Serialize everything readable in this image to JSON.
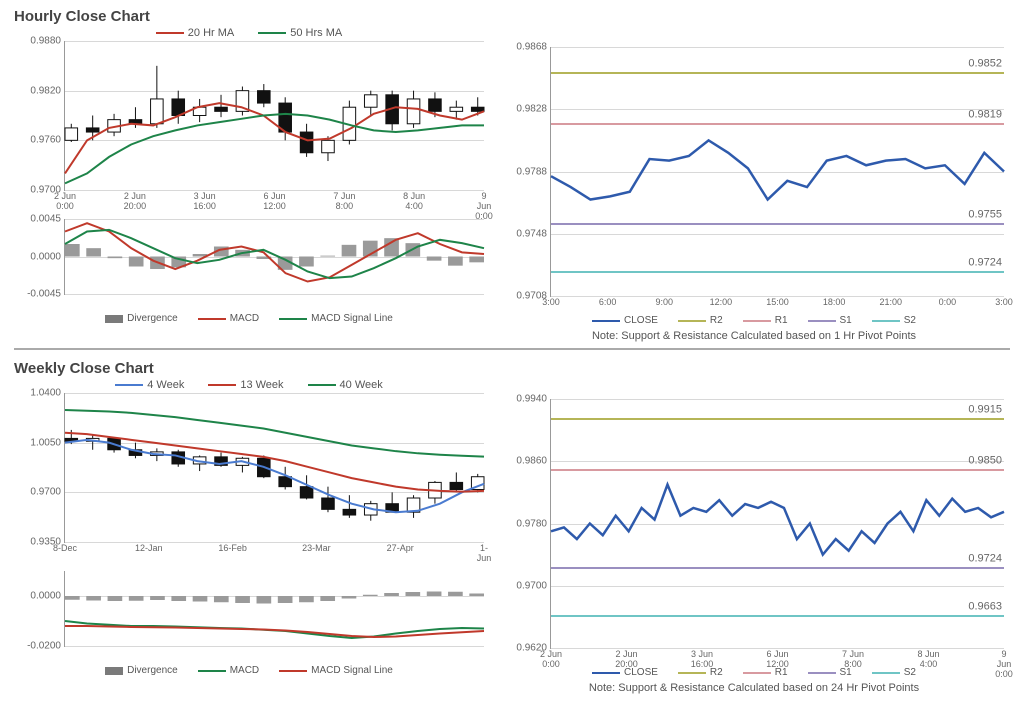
{
  "hourly": {
    "title": "Hourly Close Chart",
    "main": {
      "ylim": [
        0.97,
        0.988
      ],
      "yticks": [
        0.97,
        0.976,
        0.982,
        0.988
      ],
      "xlabels": [
        "2 Jun\n0:00",
        "2 Jun\n20:00",
        "3 Jun\n16:00",
        "6 Jun\n12:00",
        "7 Jun\n8:00",
        "8 Jun\n4:00",
        "9 Jun\n0:00"
      ],
      "ma20": [
        0.972,
        0.976,
        0.9775,
        0.978,
        0.9778,
        0.9788,
        0.98,
        0.9805,
        0.98,
        0.979,
        0.977,
        0.976,
        0.9762,
        0.9775,
        0.9792,
        0.98,
        0.9798,
        0.979,
        0.9785,
        0.9795
      ],
      "ma50": [
        0.9708,
        0.972,
        0.974,
        0.9755,
        0.9765,
        0.9772,
        0.9778,
        0.9782,
        0.9786,
        0.979,
        0.9792,
        0.979,
        0.9785,
        0.9778,
        0.9772,
        0.977,
        0.9772,
        0.9775,
        0.9778,
        0.9778
      ],
      "candles": [
        [
          0.976,
          0.978,
          0.9758,
          0.9775
        ],
        [
          0.9775,
          0.979,
          0.976,
          0.977
        ],
        [
          0.977,
          0.9792,
          0.9765,
          0.9785
        ],
        [
          0.9785,
          0.98,
          0.9775,
          0.978
        ],
        [
          0.978,
          0.985,
          0.9775,
          0.981
        ],
        [
          0.981,
          0.982,
          0.978,
          0.979
        ],
        [
          0.979,
          0.981,
          0.9782,
          0.98
        ],
        [
          0.98,
          0.9815,
          0.9788,
          0.9795
        ],
        [
          0.9795,
          0.9825,
          0.979,
          0.982
        ],
        [
          0.982,
          0.9828,
          0.98,
          0.9805
        ],
        [
          0.9805,
          0.9812,
          0.976,
          0.977
        ],
        [
          0.977,
          0.978,
          0.974,
          0.9745
        ],
        [
          0.9745,
          0.9765,
          0.9735,
          0.976
        ],
        [
          0.976,
          0.9808,
          0.9755,
          0.98
        ],
        [
          0.98,
          0.982,
          0.979,
          0.9815
        ],
        [
          0.9815,
          0.982,
          0.9772,
          0.978
        ],
        [
          0.978,
          0.982,
          0.9775,
          0.981
        ],
        [
          0.981,
          0.9818,
          0.9788,
          0.9795
        ],
        [
          0.9795,
          0.9808,
          0.9785,
          0.98
        ],
        [
          0.98,
          0.9812,
          0.979,
          0.9795
        ]
      ],
      "legend": [
        {
          "label": "20 Hr MA",
          "color": "#c0392b"
        },
        {
          "label": "50 Hrs MA",
          "color": "#1e8449"
        }
      ],
      "colors": {
        "ma20": "#c0392b",
        "ma50": "#1e8449",
        "candle": "#111111"
      }
    },
    "macd": {
      "ylim": [
        -0.0045,
        0.0045
      ],
      "yticks": [
        -0.0045,
        0.0,
        0.0045
      ],
      "macd": [
        0.003,
        0.004,
        0.003,
        0.001,
        -0.0005,
        -0.0015,
        -0.0005,
        0.0008,
        0.0012,
        0.0005,
        -0.002,
        -0.003,
        -0.0025,
        -0.001,
        0.0005,
        0.002,
        0.0028,
        0.0015,
        0.0005,
        0.0003
      ],
      "signal": [
        0.0015,
        0.003,
        0.0032,
        0.0022,
        0.001,
        -0.0002,
        -0.0008,
        -0.0004,
        0.0004,
        0.0008,
        -0.0004,
        -0.0018,
        -0.0026,
        -0.0024,
        -0.0014,
        -0.0002,
        0.0012,
        0.002,
        0.0016,
        0.001
      ],
      "hist": [
        0.0015,
        0.001,
        -0.0002,
        -0.0012,
        -0.0015,
        -0.0013,
        0.0003,
        0.0012,
        0.0008,
        -0.0003,
        -0.0016,
        -0.0012,
        0.0001,
        0.0014,
        0.0019,
        0.0022,
        0.0016,
        -0.0005,
        -0.0011,
        -0.0007
      ],
      "legend": [
        {
          "label": "Divergence",
          "type": "bar",
          "color": "#7a7a7a"
        },
        {
          "label": "MACD",
          "type": "line",
          "color": "#c0392b"
        },
        {
          "label": "MACD Signal Line",
          "type": "line",
          "color": "#1e8449"
        }
      ]
    },
    "sr": {
      "ylim": [
        0.9708,
        0.9868
      ],
      "yticks": [
        0.9708,
        0.9748,
        0.9788,
        0.9828,
        0.9868
      ],
      "xlabels": [
        "3:00",
        "6:00",
        "9:00",
        "12:00",
        "15:00",
        "18:00",
        "21:00",
        "0:00",
        "3:00"
      ],
      "close": [
        0.9785,
        0.9778,
        0.977,
        0.9772,
        0.9775,
        0.9796,
        0.9795,
        0.9798,
        0.9808,
        0.98,
        0.979,
        0.977,
        0.9782,
        0.9778,
        0.9795,
        0.9798,
        0.9792,
        0.9795,
        0.9796,
        0.979,
        0.9792,
        0.978,
        0.98,
        0.9788
      ],
      "close_color": "#2e5aac",
      "levels": [
        {
          "name": "R2",
          "value": 0.9852,
          "color": "#b5b557"
        },
        {
          "name": "R1",
          "value": 0.9819,
          "color": "#d89aa0"
        },
        {
          "name": "S1",
          "value": 0.9755,
          "color": "#9a8fc0"
        },
        {
          "name": "S2",
          "value": 0.9724,
          "color": "#6fc5c5"
        }
      ],
      "legend": [
        {
          "label": "CLOSE",
          "color": "#2e5aac"
        },
        {
          "label": "R2",
          "color": "#b5b557"
        },
        {
          "label": "R1",
          "color": "#d89aa0"
        },
        {
          "label": "S1",
          "color": "#9a8fc0"
        },
        {
          "label": "S2",
          "color": "#6fc5c5"
        }
      ],
      "note": "Note: Support & Resistance Calculated based on 1 Hr Pivot Points"
    }
  },
  "weekly": {
    "title": "Weekly Close Chart",
    "main": {
      "ylim": [
        0.935,
        1.04
      ],
      "yticks": [
        0.935,
        0.97,
        1.005,
        1.04
      ],
      "xlabels": [
        "8-Dec",
        "12-Jan",
        "16-Feb",
        "23-Mar",
        "27-Apr",
        "1-Jun"
      ],
      "w4": [
        1.005,
        1.007,
        1.005,
        1.0,
        0.997,
        0.996,
        0.992,
        0.99,
        0.992,
        0.988,
        0.982,
        0.975,
        0.968,
        0.962,
        0.958,
        0.956,
        0.957,
        0.962,
        0.97,
        0.976
      ],
      "w13": [
        1.012,
        1.011,
        1.009,
        1.007,
        1.005,
        1.003,
        1.001,
        0.999,
        0.997,
        0.995,
        0.992,
        0.988,
        0.984,
        0.98,
        0.977,
        0.974,
        0.972,
        0.971,
        0.9705,
        0.971
      ],
      "w40": [
        1.028,
        1.0275,
        1.027,
        1.026,
        1.0245,
        1.023,
        1.021,
        1.019,
        1.017,
        1.015,
        1.012,
        1.009,
        1.006,
        1.003,
        1.001,
        0.999,
        0.9975,
        0.9965,
        0.9958,
        0.9952
      ],
      "candles": [
        [
          1.008,
          1.014,
          1.004,
          1.006
        ],
        [
          1.006,
          1.01,
          1.0,
          1.008
        ],
        [
          1.008,
          1.009,
          0.998,
          1.0
        ],
        [
          1.0,
          1.005,
          0.994,
          0.996
        ],
        [
          0.996,
          1.001,
          0.992,
          0.9985
        ],
        [
          0.9985,
          1.0,
          0.988,
          0.99
        ],
        [
          0.99,
          0.996,
          0.985,
          0.995
        ],
        [
          0.995,
          0.998,
          0.988,
          0.989
        ],
        [
          0.989,
          0.995,
          0.984,
          0.994
        ],
        [
          0.994,
          0.996,
          0.98,
          0.981
        ],
        [
          0.981,
          0.988,
          0.972,
          0.974
        ],
        [
          0.974,
          0.982,
          0.965,
          0.966
        ],
        [
          0.966,
          0.974,
          0.956,
          0.958
        ],
        [
          0.958,
          0.968,
          0.952,
          0.954
        ],
        [
          0.954,
          0.964,
          0.95,
          0.962
        ],
        [
          0.962,
          0.97,
          0.956,
          0.956
        ],
        [
          0.956,
          0.968,
          0.952,
          0.966
        ],
        [
          0.966,
          0.978,
          0.962,
          0.977
        ],
        [
          0.977,
          0.984,
          0.97,
          0.972
        ],
        [
          0.972,
          0.983,
          0.97,
          0.981
        ]
      ],
      "legend": [
        {
          "label": "4 Week",
          "color": "#4a7bd0"
        },
        {
          "label": "13 Week",
          "color": "#c0392b"
        },
        {
          "label": "40 Week",
          "color": "#1e8449"
        }
      ],
      "colors": {
        "w4": "#4a7bd0",
        "w13": "#c0392b",
        "w40": "#1e8449",
        "candle": "#111111"
      }
    },
    "macd": {
      "ylim": [
        -0.02,
        0.01
      ],
      "yticks": [
        -0.02,
        0.0
      ],
      "macd": [
        -0.01,
        -0.011,
        -0.0115,
        -0.012,
        -0.012,
        -0.0122,
        -0.0125,
        -0.0128,
        -0.013,
        -0.0135,
        -0.014,
        -0.015,
        -0.016,
        -0.0168,
        -0.0162,
        -0.015,
        -0.014,
        -0.0132,
        -0.0128,
        -0.013
      ],
      "signal": [
        -0.012,
        -0.012,
        -0.0122,
        -0.0124,
        -0.0125,
        -0.0126,
        -0.0128,
        -0.013,
        -0.0132,
        -0.0134,
        -0.0138,
        -0.0144,
        -0.0152,
        -0.016,
        -0.0164,
        -0.0162,
        -0.0156,
        -0.015,
        -0.0145,
        -0.014
      ],
      "hist": [
        -0.0015,
        -0.0018,
        -0.002,
        -0.0019,
        -0.0016,
        -0.002,
        -0.0022,
        -0.0025,
        -0.0028,
        -0.003,
        -0.0028,
        -0.0025,
        -0.002,
        -0.001,
        0.0005,
        0.0012,
        0.0016,
        0.0018,
        0.0017,
        0.001
      ],
      "legend": [
        {
          "label": "Divergence",
          "type": "bar",
          "color": "#7a7a7a"
        },
        {
          "label": "MACD",
          "type": "line",
          "color": "#1e8449"
        },
        {
          "label": "MACD Signal Line",
          "type": "line",
          "color": "#c0392b"
        }
      ]
    },
    "sr": {
      "ylim": [
        0.962,
        0.994
      ],
      "yticks": [
        0.962,
        0.97,
        0.978,
        0.986,
        0.994
      ],
      "xlabels": [
        "2 Jun\n0:00",
        "2 Jun\n20:00",
        "3 Jun\n16:00",
        "6 Jun\n12:00",
        "7 Jun\n8:00",
        "8 Jun\n4:00",
        "9 Jun\n0:00"
      ],
      "close": [
        0.977,
        0.9775,
        0.976,
        0.978,
        0.9765,
        0.979,
        0.977,
        0.98,
        0.9785,
        0.983,
        0.979,
        0.98,
        0.9795,
        0.981,
        0.979,
        0.9805,
        0.98,
        0.9808,
        0.98,
        0.976,
        0.978,
        0.974,
        0.976,
        0.9745,
        0.977,
        0.9755,
        0.978,
        0.9795,
        0.977,
        0.981,
        0.979,
        0.9812,
        0.9795,
        0.98,
        0.9788,
        0.9795
      ],
      "close_color": "#2e5aac",
      "levels": [
        {
          "name": "R2",
          "value": 0.9915,
          "color": "#b5b557"
        },
        {
          "name": "R1",
          "value": 0.985,
          "color": "#d89aa0"
        },
        {
          "name": "S1",
          "value": 0.9724,
          "color": "#9a8fc0"
        },
        {
          "name": "S2",
          "value": 0.9663,
          "color": "#6fc5c5"
        }
      ],
      "legend": [
        {
          "label": "CLOSE",
          "color": "#2e5aac"
        },
        {
          "label": "R2",
          "color": "#b5b557"
        },
        {
          "label": "R1",
          "color": "#d89aa0"
        },
        {
          "label": "S1",
          "color": "#9a8fc0"
        },
        {
          "label": "S2",
          "color": "#6fc5c5"
        }
      ],
      "note": "Note: Support & Resistance Calculated based on 24 Hr Pivot Points"
    }
  }
}
